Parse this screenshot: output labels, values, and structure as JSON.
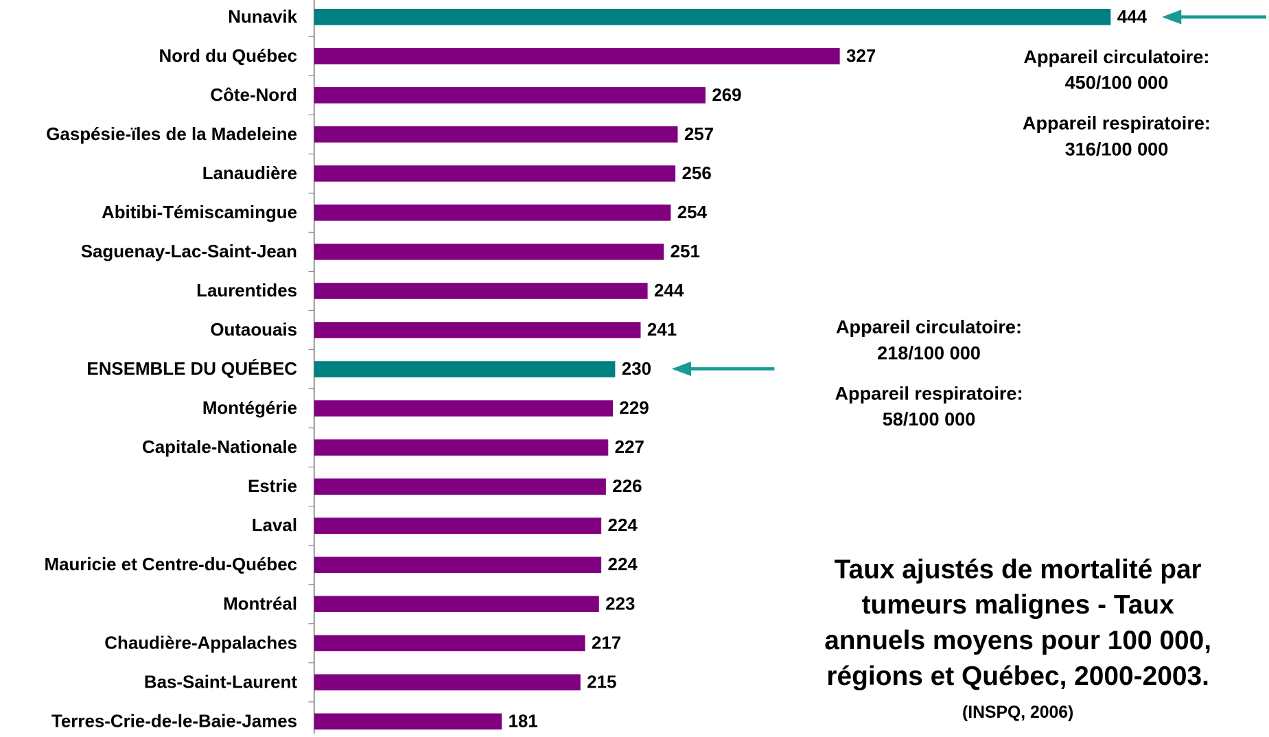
{
  "chart_data": {
    "type": "bar",
    "orientation": "horizontal",
    "title": [
      "Taux ajustés de mortalité par",
      "tumeurs malignes - Taux",
      "annuels moyens pour 100 000,",
      "régions et Québec, 2000-2003."
    ],
    "source": "(INSPQ, 2006)",
    "categories": [
      "Nunavik",
      "Nord du Québec",
      "Côte-Nord",
      "Gaspésie-ïles de la Madeleine",
      "Lanaudière",
      "Abitibi-Témiscamingue",
      "Saguenay-Lac-Saint-Jean",
      "Laurentides",
      "Outaouais",
      "ENSEMBLE DU QUÉBEC",
      "Montégérie",
      "Capitale-Nationale",
      "Estrie",
      "Laval",
      "Mauricie et Centre-du-Québec",
      "Montréal",
      "Chaudière-Appalaches",
      "Bas-Saint-Laurent",
      "Terres-Crie-de-le-Baie-James"
    ],
    "values": [
      444,
      327,
      269,
      257,
      256,
      254,
      251,
      244,
      241,
      230,
      229,
      227,
      226,
      224,
      224,
      223,
      217,
      215,
      181
    ],
    "colors": [
      "#008080",
      "#800080",
      "#800080",
      "#800080",
      "#800080",
      "#800080",
      "#800080",
      "#800080",
      "#800080",
      "#008080",
      "#800080",
      "#800080",
      "#800080",
      "#800080",
      "#800080",
      "#800080",
      "#800080",
      "#800080",
      "#800080"
    ],
    "xlim": [
      100,
      500
    ],
    "annotations": [
      [
        "Appareil circulatoire:",
        "450/100 000",
        "Appareil respiratoire:",
        "316/100 000"
      ],
      [
        "Appareil circulatoire:",
        "218/100 000",
        "Appareil respiratoire:",
        "58/100 000"
      ]
    ]
  }
}
